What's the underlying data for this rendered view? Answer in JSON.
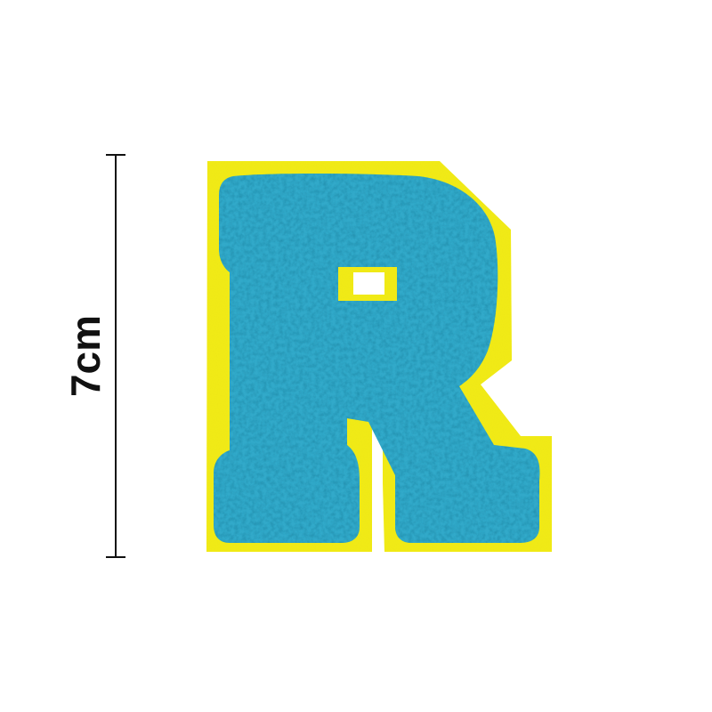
{
  "dimension": {
    "label": "7cm"
  },
  "patch": {
    "letter": "R",
    "border_color": "#f3ec1a",
    "border_shadow_color": "#d9d20c",
    "chenille_color": "#33a9c9",
    "chenille_highlight_color": "#62c3dd",
    "chenille_shadow_color": "#1f86a4"
  },
  "colors": {
    "background": "#ffffff",
    "ruler_line": "#111111",
    "text": "#111111"
  }
}
